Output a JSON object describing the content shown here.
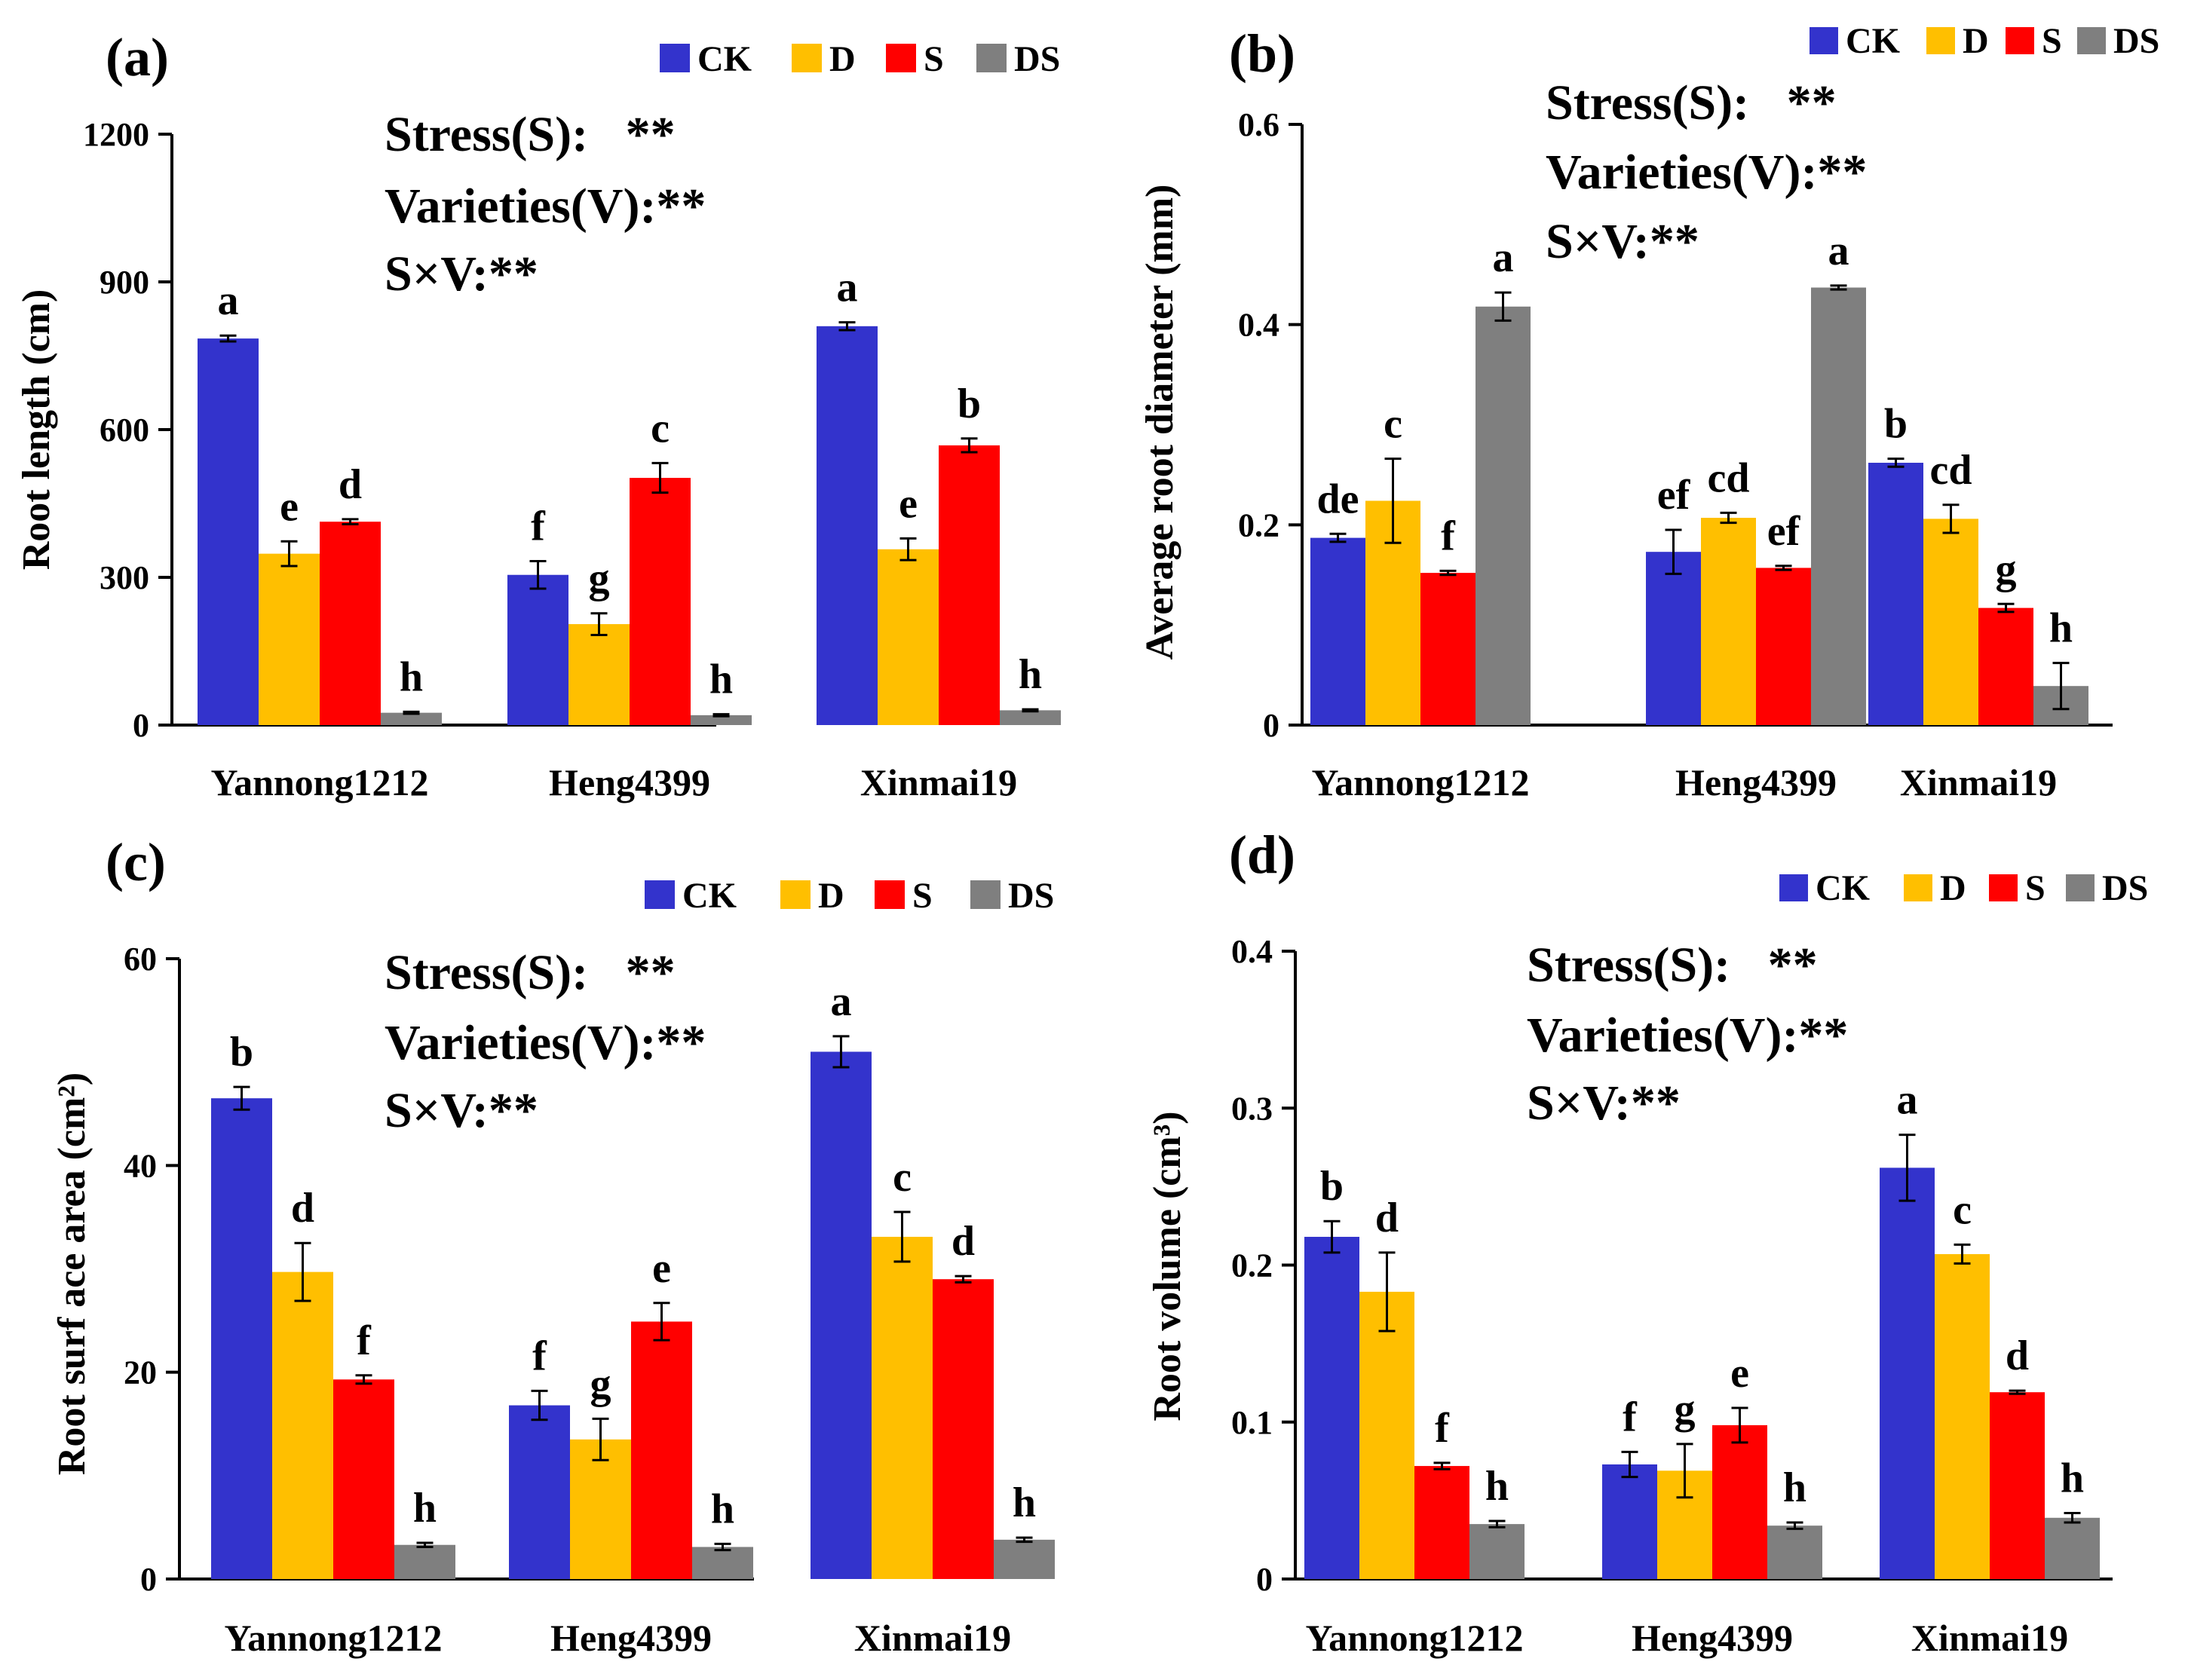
{
  "figure_title": "",
  "legend_labels": [
    "CK",
    "D",
    "S",
    "DS"
  ],
  "colors": {
    "CK": "#3333cc",
    "D": "#ffbf00",
    "S": "#ff0000",
    "DS": "#7f7f7f",
    "axis": "#000000"
  },
  "chart_data": [
    {
      "type": "bar",
      "panel_label": "(a)",
      "title": "",
      "xlabel": "",
      "ylabel": "Root length (cm)",
      "ylim": [
        0,
        1200
      ],
      "yticks": [
        0,
        300,
        600,
        900,
        1200
      ],
      "ytick_labels": [
        "0",
        "300",
        "600",
        "900",
        "1200"
      ],
      "categories": [
        "Yannong1212",
        "Heng4399",
        "Xinmai19"
      ],
      "series": [
        {
          "name": "CK",
          "values": [
            785,
            305,
            810
          ],
          "errors": [
            6,
            28,
            8
          ],
          "letters": [
            "a",
            "f",
            "a"
          ]
        },
        {
          "name": "D",
          "values": [
            348,
            205,
            357
          ],
          "errors": [
            25,
            22,
            22
          ],
          "letters": [
            "e",
            "g",
            "e"
          ]
        },
        {
          "name": "S",
          "values": [
            413,
            502,
            568
          ],
          "errors": [
            5,
            30,
            14
          ],
          "letters": [
            "d",
            "c",
            "b"
          ]
        },
        {
          "name": "DS",
          "values": [
            25,
            20,
            30
          ],
          "errors": [
            2,
            2,
            2
          ],
          "letters": [
            "h",
            "h",
            "h"
          ]
        }
      ],
      "stats": [
        "Stress(S):   **",
        "Varieties(V):**",
        "S×V:**"
      ],
      "legend_position": "top-right"
    },
    {
      "type": "bar",
      "panel_label": "(b)",
      "title": "",
      "xlabel": "",
      "ylabel": "Average root diameter (mm)",
      "ylim": [
        0,
        0.6
      ],
      "yticks": [
        0,
        0.2,
        0.4,
        0.6
      ],
      "ytick_labels": [
        "0",
        "0.2",
        "0.4",
        "0.6"
      ],
      "categories": [
        "Yannong1212",
        "Heng4399",
        "Xinmai19"
      ],
      "series": [
        {
          "name": "CK",
          "values": [
            0.187,
            0.173,
            0.262
          ],
          "errors": [
            0.004,
            0.022,
            0.004
          ],
          "letters": [
            "de",
            "ef",
            "b"
          ]
        },
        {
          "name": "D",
          "values": [
            0.224,
            0.207,
            0.206
          ],
          "errors": [
            0.042,
            0.005,
            0.014
          ],
          "letters": [
            "c",
            "cd",
            "cd"
          ]
        },
        {
          "name": "S",
          "values": [
            0.152,
            0.157,
            0.117
          ],
          "errors": [
            0.002,
            0.002,
            0.004
          ],
          "letters": [
            "f",
            "ef",
            "g"
          ]
        },
        {
          "name": "DS",
          "values": [
            0.418,
            0.437,
            0.039
          ],
          "errors": [
            0.014,
            0.002,
            0.023
          ],
          "letters": [
            "a",
            "a",
            "h"
          ]
        }
      ],
      "stats": [
        "Stress(S):   **",
        "Varieties(V):**",
        "S×V:**"
      ],
      "legend_position": "top-right"
    },
    {
      "type": "bar",
      "panel_label": "(c)",
      "title": "",
      "xlabel": "",
      "ylabel": "Root surf ace area (cm²)",
      "ylim": [
        0,
        60
      ],
      "yticks": [
        0,
        20,
        40,
        60
      ],
      "ytick_labels": [
        "0",
        "20",
        "40",
        "60"
      ],
      "categories": [
        "Yannong1212",
        "Heng4399",
        "Xinmai19"
      ],
      "series": [
        {
          "name": "CK",
          "values": [
            46.5,
            16.8,
            51.0
          ],
          "errors": [
            1.1,
            1.4,
            1.5
          ],
          "letters": [
            "b",
            "f",
            "a"
          ]
        },
        {
          "name": "D",
          "values": [
            29.7,
            13.5,
            33.1
          ],
          "errors": [
            2.8,
            2.0,
            2.4
          ],
          "letters": [
            "d",
            "g",
            "c"
          ]
        },
        {
          "name": "S",
          "values": [
            19.3,
            24.9,
            29.0
          ],
          "errors": [
            0.4,
            1.8,
            0.3
          ],
          "letters": [
            "f",
            "e",
            "d"
          ]
        },
        {
          "name": "DS",
          "values": [
            3.3,
            3.1,
            3.8
          ],
          "errors": [
            0.2,
            0.3,
            0.2
          ],
          "letters": [
            "h",
            "h",
            "h"
          ]
        }
      ],
      "stats": [
        "Stress(S):   **",
        "Varieties(V):**",
        "S×V:**"
      ],
      "legend_position": "top-right"
    },
    {
      "type": "bar",
      "panel_label": "(d)",
      "title": "",
      "xlabel": "",
      "ylabel": "Root volume (cm³)",
      "ylim": [
        0,
        0.4
      ],
      "yticks": [
        0,
        0.1,
        0.2,
        0.3,
        0.4
      ],
      "ytick_labels": [
        "0",
        "0.1",
        "0.2",
        "0.3",
        "0.4"
      ],
      "categories": [
        "Yannong1212",
        "Heng4399",
        "Xinmai19"
      ],
      "series": [
        {
          "name": "CK",
          "values": [
            0.218,
            0.073,
            0.262
          ],
          "errors": [
            0.01,
            0.008,
            0.021
          ],
          "letters": [
            "b",
            "f",
            "a"
          ]
        },
        {
          "name": "D",
          "values": [
            0.183,
            0.069,
            0.207
          ],
          "errors": [
            0.025,
            0.017,
            0.006
          ],
          "letters": [
            "d",
            "g",
            "c"
          ]
        },
        {
          "name": "S",
          "values": [
            0.072,
            0.098,
            0.119
          ],
          "errors": [
            0.002,
            0.011,
            0.001
          ],
          "letters": [
            "f",
            "e",
            "d"
          ]
        },
        {
          "name": "DS",
          "values": [
            0.035,
            0.034,
            0.039
          ],
          "errors": [
            0.002,
            0.002,
            0.003
          ],
          "letters": [
            "h",
            "h",
            "h"
          ]
        }
      ],
      "stats": [
        "Stress(S):   **",
        "Varieties(V):**",
        "S×V:**"
      ],
      "legend_position": "top-right"
    }
  ]
}
